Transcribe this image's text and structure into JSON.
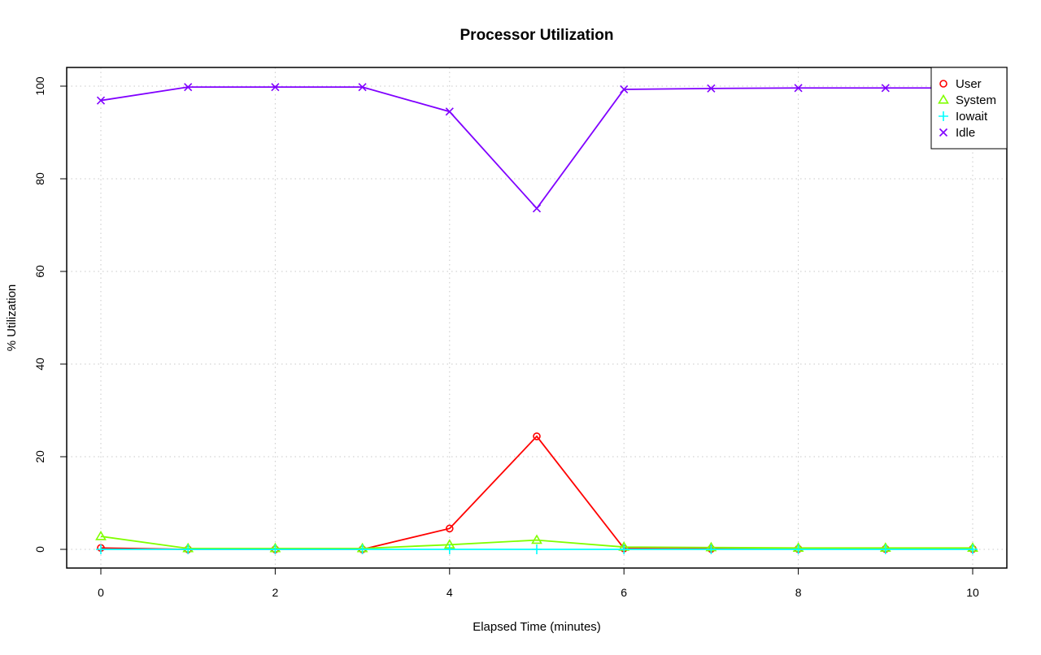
{
  "chart_data": {
    "type": "line",
    "title": "Processor Utilization",
    "xlabel": "Elapsed Time (minutes)",
    "ylabel": "% Utilization",
    "xlim": [
      0,
      10
    ],
    "ylim": [
      0,
      100
    ],
    "x_ticks": [
      0,
      2,
      4,
      6,
      8,
      10
    ],
    "y_ticks": [
      0,
      20,
      40,
      60,
      80,
      100
    ],
    "grid": true,
    "legend_position": "top-right",
    "x": [
      0,
      1,
      2,
      3,
      4,
      5,
      6,
      7,
      8,
      9,
      10
    ],
    "series": [
      {
        "name": "User",
        "color": "#ff0000",
        "marker": "circle",
        "values": [
          0.3,
          0.0,
          0.0,
          0.0,
          4.5,
          24.4,
          0.2,
          0.1,
          0.1,
          0.1,
          0.1
        ]
      },
      {
        "name": "System",
        "color": "#80ff00",
        "marker": "triangle",
        "values": [
          2.8,
          0.2,
          0.2,
          0.2,
          1.0,
          2.0,
          0.5,
          0.4,
          0.3,
          0.3,
          0.3
        ]
      },
      {
        "name": "Iowait",
        "color": "#00ffff",
        "marker": "plus",
        "values": [
          0.0,
          0.0,
          0.0,
          0.0,
          0.0,
          0.0,
          0.0,
          0.0,
          0.0,
          0.0,
          0.0
        ]
      },
      {
        "name": "Idle",
        "color": "#8000ff",
        "marker": "cross",
        "values": [
          96.9,
          99.8,
          99.8,
          99.8,
          94.5,
          73.6,
          99.3,
          99.5,
          99.6,
          99.6,
          99.6
        ]
      }
    ]
  }
}
